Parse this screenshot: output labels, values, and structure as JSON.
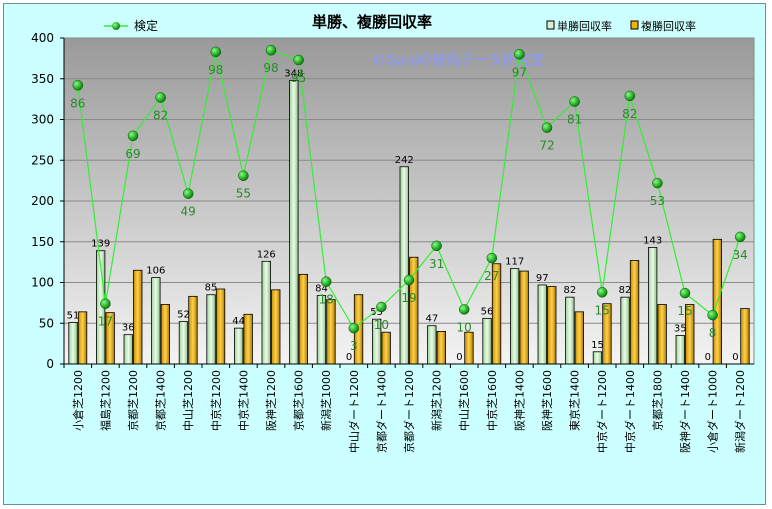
{
  "chart_data": {
    "type": "bar",
    "title": "単勝、複勝回収率",
    "watermark": "©Ganiの競馬データ研究室",
    "categories": [
      "小倉芝1200",
      "福島芝1200",
      "京都芝1200",
      "京都芝1400",
      "中山芝1200",
      "中京芝1200",
      "中京芝1400",
      "阪神芝1200",
      "京都芝1600",
      "新潟芝1000",
      "中山ダート1200",
      "京都ダート1400",
      "京都ダート1200",
      "新潟芝1200",
      "中山芝1600",
      "中京芝1600",
      "阪神芝1400",
      "阪神芝1600",
      "東京芝1400",
      "中京ダート1200",
      "中京ダート1400",
      "京都芝1800",
      "阪神ダート1400",
      "小倉ダート1000",
      "新潟ダート1200"
    ],
    "ylim": [
      0,
      400
    ],
    "yticks": [
      "0",
      "50",
      "100",
      "150",
      "200",
      "250",
      "300",
      "350",
      "400"
    ],
    "grid": true,
    "legend_position": "top",
    "series": [
      {
        "name": "単勝回収率",
        "kind": "bar",
        "color": "#d8f0d0",
        "values": [
          51,
          139,
          36,
          106,
          52,
          85,
          44,
          126,
          348,
          84,
          0,
          55,
          242,
          47,
          0,
          56,
          117,
          97,
          82,
          15,
          82,
          143,
          35,
          0,
          0
        ],
        "labels": [
          "51",
          "139",
          "36",
          "106",
          "52",
          "85",
          "44",
          "126",
          "348",
          "84",
          "0",
          "55",
          "242",
          "47",
          "0",
          "56",
          "117",
          "97",
          "82",
          "15",
          "82",
          "143",
          "35",
          "0",
          "0"
        ]
      },
      {
        "name": "複勝回収率",
        "kind": "bar",
        "color": "#f0b400",
        "values": [
          64,
          63,
          115,
          73,
          83,
          92,
          61,
          91,
          110,
          79,
          85,
          39,
          131,
          40,
          39,
          123,
          114,
          95,
          64,
          74,
          127,
          73,
          73,
          153,
          68
        ]
      },
      {
        "name": "検定",
        "kind": "line",
        "color": "#33ee33",
        "marker": "#009900",
        "values": [
          342,
          74,
          280,
          327,
          209,
          383,
          231,
          385,
          373,
          101,
          44,
          70,
          103,
          145,
          67,
          130,
          380,
          290,
          322,
          88,
          329,
          222,
          87,
          60,
          156
        ],
        "labels": [
          "86",
          "17",
          "69",
          "82",
          "49",
          "98",
          "55",
          "98",
          "95",
          "18",
          "3",
          "10",
          "19",
          "31",
          "10",
          "27",
          "97",
          "72",
          "81",
          "15",
          "82",
          "53",
          "15",
          "8",
          "34"
        ]
      }
    ]
  }
}
